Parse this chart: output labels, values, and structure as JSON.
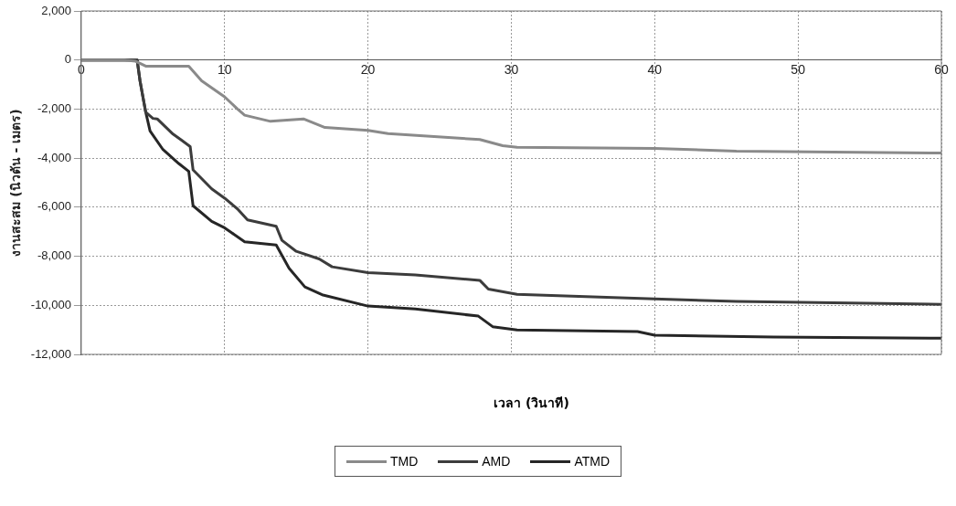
{
  "chart_data": {
    "type": "line",
    "xlabel": "เวลา (วินาที)",
    "ylabel": "งานสะสม (นิวตัน - เมตร)",
    "xlim": [
      0,
      60
    ],
    "xticks": [
      0,
      10,
      20,
      30,
      40,
      50,
      60
    ],
    "ylim": [
      -12000,
      2000
    ],
    "yticks": [
      {
        "value": 2000,
        "label": "2,000"
      },
      0,
      {
        "value": -2000,
        "label": "-2,000"
      },
      {
        "value": -4000,
        "label": "-4,000"
      },
      {
        "value": -6000,
        "label": "-6,000"
      },
      {
        "value": -8000,
        "label": "-8,000"
      },
      {
        "value": -10000,
        "label": "-10,000"
      },
      {
        "value": -12000,
        "label": "-12,000"
      }
    ],
    "grid": true,
    "legend": "bottom",
    "line_style": "solid",
    "series": [
      {
        "name": "TMD",
        "color": "#8a8a8a",
        "x": [
          0,
          3,
          3.8,
          4.5,
          7.5,
          8.4,
          10,
          10.9,
          11.4,
          13.2,
          15.5,
          17,
          20,
          21.4,
          27.8,
          29.4,
          30.4,
          40,
          45.7,
          60
        ],
        "values": [
          0,
          0,
          -50,
          -250,
          -250,
          -850,
          -1500,
          -2000,
          -2250,
          -2500,
          -2400,
          -2750,
          -2870,
          -3000,
          -3240,
          -3490,
          -3560,
          -3600,
          -3720,
          -3790
        ]
      },
      {
        "name": "AMD",
        "color": "#3c3c3c",
        "x": [
          0,
          3,
          3.9,
          4.1,
          4.5,
          5,
          5.3,
          6.4,
          7,
          7.6,
          7.8,
          9.1,
          10,
          10.9,
          11.6,
          13.6,
          14,
          15,
          16.6,
          17.5,
          20,
          23.3,
          27.8,
          28.4,
          30.4,
          40,
          45.7,
          60
        ],
        "values": [
          0,
          0,
          0,
          -850,
          -2130,
          -2380,
          -2400,
          -3020,
          -3270,
          -3530,
          -4480,
          -5250,
          -5630,
          -6070,
          -6520,
          -6780,
          -7350,
          -7800,
          -8110,
          -8430,
          -8670,
          -8760,
          -8980,
          -9340,
          -9550,
          -9740,
          -9840,
          -9960
        ]
      },
      {
        "name": "ATMD",
        "color": "#262626",
        "x": [
          0,
          3,
          3.9,
          4.1,
          4.3,
          4.5,
          4.8,
          5.7,
          6.8,
          7.5,
          7.8,
          9.1,
          10,
          11.4,
          13.6,
          14.5,
          15.6,
          16.8,
          20,
          23.3,
          27.7,
          28.7,
          30.4,
          38.8,
          40,
          48.3,
          60
        ],
        "values": [
          0,
          0,
          0,
          -850,
          -1500,
          -2130,
          -2890,
          -3650,
          -4220,
          -4540,
          -5940,
          -6580,
          -6840,
          -7410,
          -7540,
          -8490,
          -9250,
          -9570,
          -10030,
          -10150,
          -10440,
          -10870,
          -11000,
          -11070,
          -11220,
          -11290,
          -11340
        ]
      }
    ]
  }
}
